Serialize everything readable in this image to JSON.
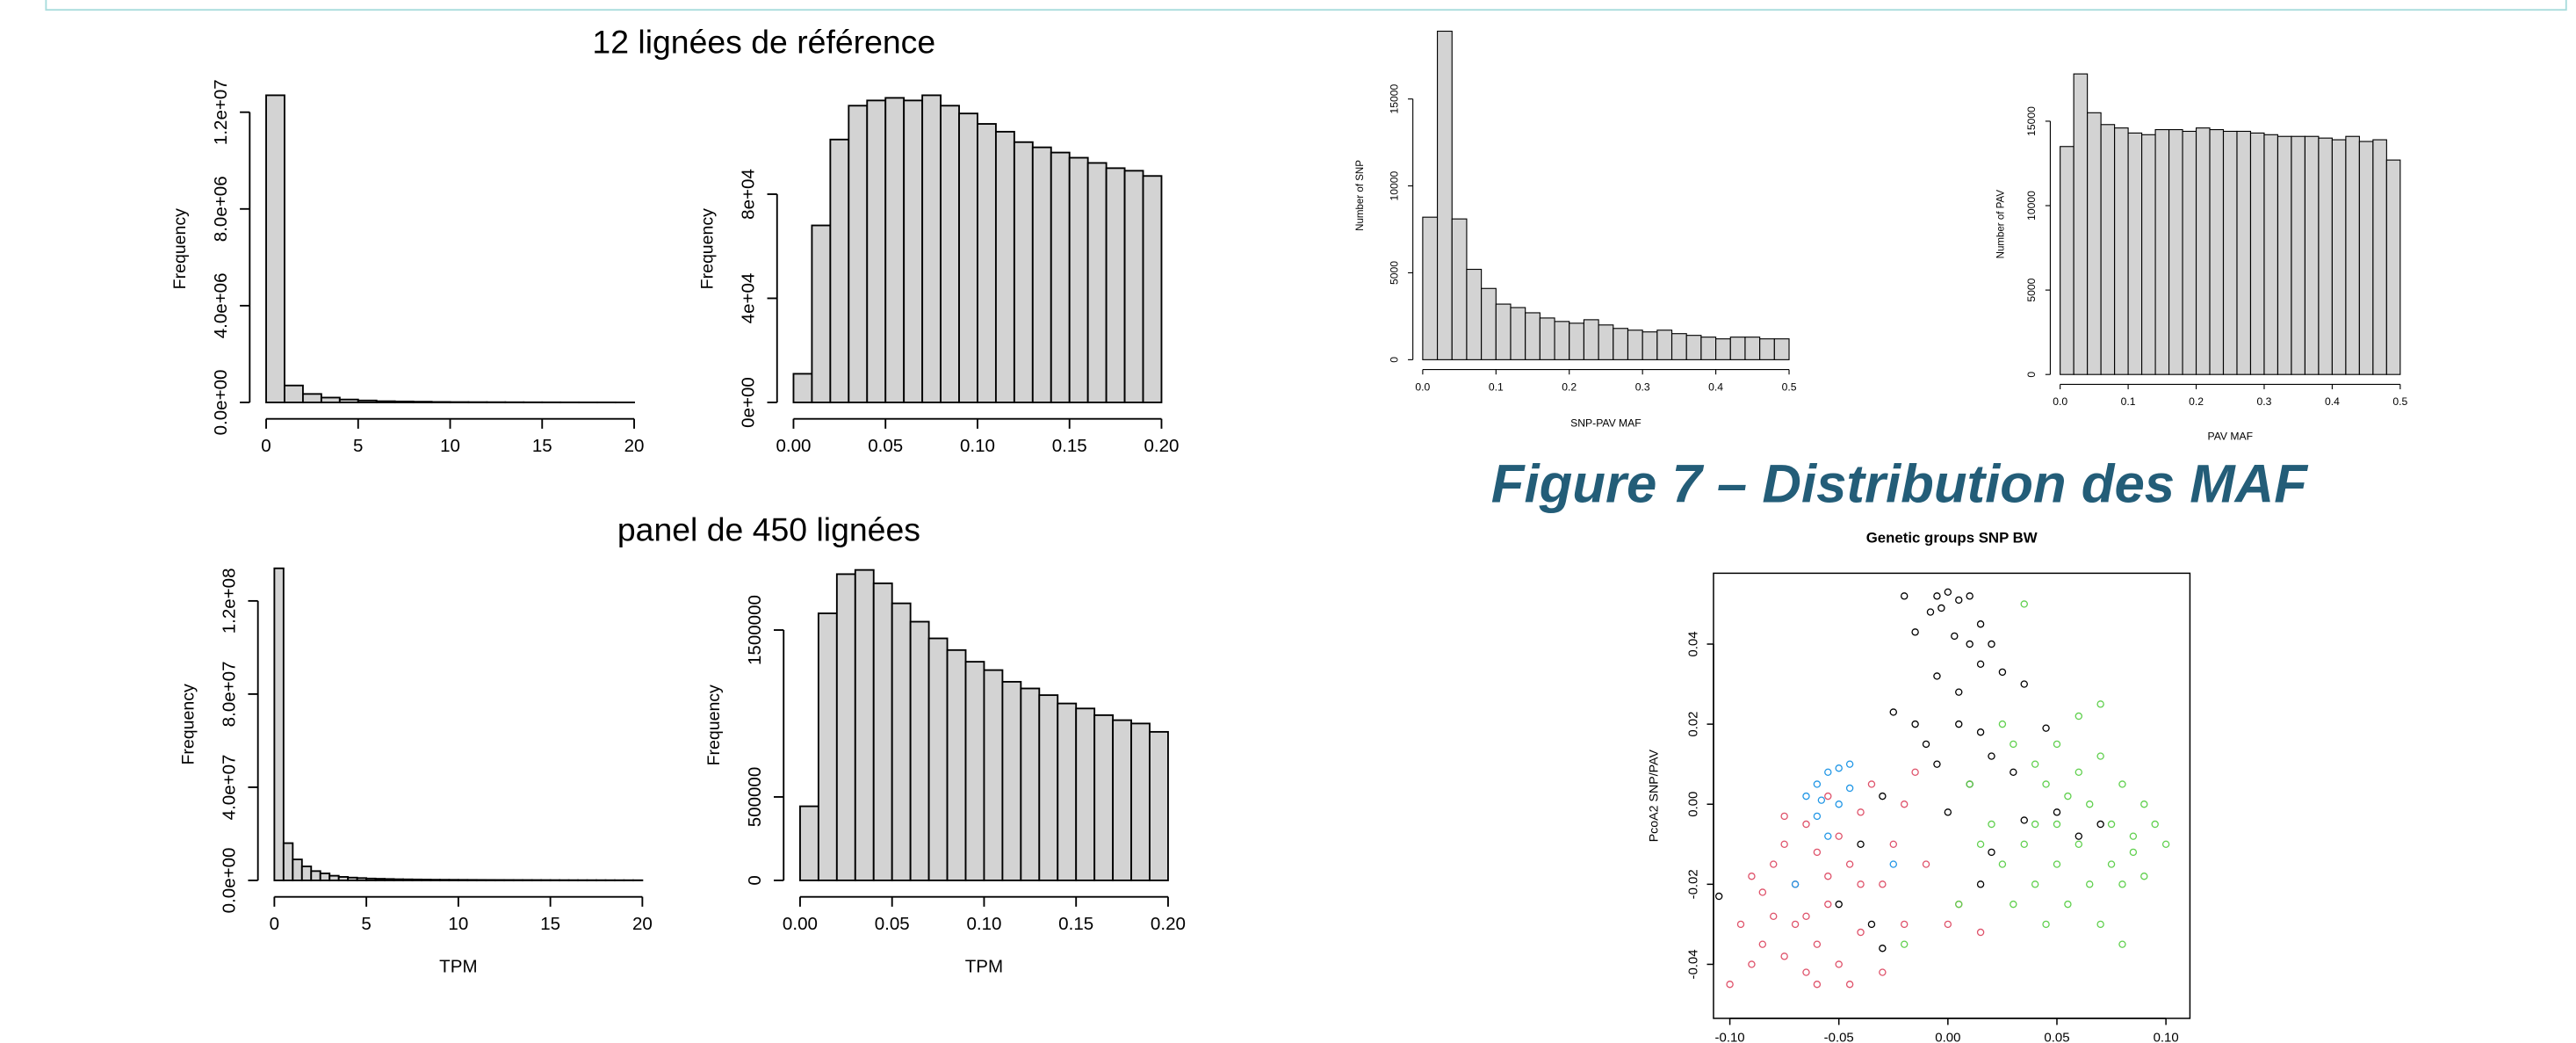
{
  "group_titles": [
    "12 lignées de référence",
    "panel de 450 lignées"
  ],
  "caption": "Figure 7 – Distribution des MAF",
  "chart_data": [
    {
      "type": "histogram",
      "ylabel": "Frequency",
      "color": "#d3d3d3",
      "bins": [
        0,
        1,
        2,
        3,
        4,
        5,
        6,
        7,
        8,
        9,
        10,
        11,
        12,
        13,
        14,
        15,
        16,
        17,
        18,
        19,
        20
      ],
      "values": [
        12700000,
        700000,
        350000,
        200000,
        120000,
        80000,
        50000,
        40000,
        30000,
        20000,
        15000,
        12000,
        10000,
        8000,
        6000,
        5000,
        4000,
        3000,
        3000,
        2000
      ],
      "xlim": [
        0,
        20
      ],
      "ylim": [
        0,
        12700000
      ],
      "xticks": [
        0,
        5,
        10,
        15,
        20
      ],
      "yticks": [
        {
          "value": 0,
          "label": "0.0e+00"
        },
        {
          "value": 4000000,
          "label": "4.0e+06"
        },
        {
          "value": 8000000,
          "label": "8.0e+06"
        },
        {
          "value": 12000000,
          "label": "1.2e+07"
        }
      ]
    },
    {
      "type": "histogram",
      "ylabel": "Frequency",
      "color": "#d3d3d3",
      "bins": [
        0,
        0.01,
        0.02,
        0.03,
        0.04,
        0.05,
        0.06,
        0.07,
        0.08,
        0.09,
        0.1,
        0.11,
        0.12,
        0.13,
        0.14,
        0.15,
        0.16,
        0.17,
        0.18,
        0.19,
        0.2
      ],
      "values": [
        11000,
        68000,
        101000,
        114000,
        116000,
        117000,
        116000,
        118000,
        114000,
        111000,
        107000,
        104000,
        100000,
        98000,
        96000,
        94000,
        92000,
        90000,
        89000,
        87000
      ],
      "xlim": [
        0,
        0.2
      ],
      "ylim": [
        0,
        118000
      ],
      "xticks": [
        {
          "value": 0,
          "label": "0.00"
        },
        {
          "value": 0.05,
          "label": "0.05"
        },
        {
          "value": 0.1,
          "label": "0.10"
        },
        {
          "value": 0.15,
          "label": "0.15"
        },
        {
          "value": 0.2,
          "label": "0.20"
        }
      ],
      "yticks": [
        {
          "value": 0,
          "label": "0e+00"
        },
        {
          "value": 40000,
          "label": "4e+04"
        },
        {
          "value": 80000,
          "label": "8e+04"
        }
      ]
    },
    {
      "type": "histogram",
      "ylabel": "Frequency",
      "xlabel": "TPM",
      "color": "#d3d3d3",
      "bins": [
        0,
        0.5,
        1,
        1.5,
        2,
        2.5,
        3,
        3.5,
        4,
        4.5,
        5,
        5.5,
        6,
        6.5,
        7,
        7.5,
        8,
        8.5,
        9,
        9.5,
        10,
        10.5,
        11,
        11.5,
        12,
        12.5,
        13,
        13.5,
        14,
        14.5,
        15,
        15.5,
        16,
        16.5,
        17,
        17.5,
        18,
        18.5,
        19,
        19.5,
        20
      ],
      "values": [
        134000000,
        16000000,
        9000000,
        6000000,
        4000000,
        3000000,
        2000000,
        1500000,
        1200000,
        1000000,
        800000,
        700000,
        600000,
        500000,
        450000,
        400000,
        350000,
        300000,
        280000,
        260000,
        240000,
        220000,
        200000,
        190000,
        180000,
        170000,
        160000,
        150000,
        140000,
        130000,
        120000,
        110000,
        100000,
        95000,
        90000,
        85000,
        80000,
        75000,
        70000,
        65000
      ],
      "xlim": [
        0,
        20
      ],
      "ylim": [
        0,
        134000000
      ],
      "xticks": [
        0,
        5,
        10,
        15,
        20
      ],
      "yticks": [
        {
          "value": 0,
          "label": "0.0e+00"
        },
        {
          "value": 40000000,
          "label": "4.0e+07"
        },
        {
          "value": 80000000,
          "label": "8.0e+07"
        },
        {
          "value": 120000000,
          "label": "1.2e+08"
        }
      ]
    },
    {
      "type": "histogram",
      "ylabel": "Frequency",
      "xlabel": "TPM",
      "color": "#d3d3d3",
      "bins": [
        0,
        0.01,
        0.02,
        0.03,
        0.04,
        0.05,
        0.06,
        0.07,
        0.08,
        0.09,
        0.1,
        0.11,
        0.12,
        0.13,
        0.14,
        0.15,
        0.16,
        0.17,
        0.18,
        0.19,
        0.2
      ],
      "values": [
        444000,
        1600000,
        1835000,
        1860000,
        1780000,
        1660000,
        1550000,
        1450000,
        1380000,
        1310000,
        1260000,
        1190000,
        1150000,
        1110000,
        1060000,
        1030000,
        990000,
        960000,
        940000,
        890000
      ],
      "xlim": [
        0,
        0.2
      ],
      "ylim": [
        0,
        1860000
      ],
      "xticks": [
        {
          "value": 0,
          "label": "0.00"
        },
        {
          "value": 0.05,
          "label": "0.05"
        },
        {
          "value": 0.1,
          "label": "0.10"
        },
        {
          "value": 0.15,
          "label": "0.15"
        },
        {
          "value": 0.2,
          "label": "0.20"
        }
      ],
      "yticks": [
        0,
        500000,
        1500000
      ]
    },
    {
      "type": "histogram",
      "ylabel": "Number of SNP",
      "xlabel": "SNP-PAV MAF",
      "color": "#d3d3d3",
      "bins": [
        0,
        0.02,
        0.04,
        0.06,
        0.08,
        0.1,
        0.12,
        0.14,
        0.16,
        0.18,
        0.2,
        0.22,
        0.24,
        0.26,
        0.28,
        0.3,
        0.32,
        0.34,
        0.36,
        0.38,
        0.4,
        0.42,
        0.44,
        0.46,
        0.48,
        0.5
      ],
      "values": [
        8200,
        18900,
        8100,
        5200,
        4100,
        3200,
        3000,
        2700,
        2400,
        2200,
        2100,
        2300,
        2000,
        1800,
        1700,
        1600,
        1700,
        1500,
        1400,
        1300,
        1200,
        1300,
        1300,
        1200,
        1200
      ],
      "xlim": [
        0,
        0.5
      ],
      "ylim": [
        0,
        18900
      ],
      "xticks": [
        {
          "value": 0,
          "label": "0.0"
        },
        {
          "value": 0.1,
          "label": "0.1"
        },
        {
          "value": 0.2,
          "label": "0.2"
        },
        {
          "value": 0.3,
          "label": "0.3"
        },
        {
          "value": 0.4,
          "label": "0.4"
        },
        {
          "value": 0.5,
          "label": "0.5"
        }
      ],
      "yticks": [
        0,
        5000,
        10000,
        15000
      ]
    },
    {
      "type": "histogram",
      "ylabel": "Number of PAV",
      "xlabel": "PAV MAF",
      "color": "#d3d3d3",
      "bins": [
        0,
        0.02,
        0.04,
        0.06,
        0.08,
        0.1,
        0.12,
        0.14,
        0.16,
        0.18,
        0.2,
        0.22,
        0.24,
        0.26,
        0.28,
        0.3,
        0.32,
        0.34,
        0.36,
        0.38,
        0.4,
        0.42,
        0.44,
        0.46,
        0.48,
        0.5
      ],
      "values": [
        13500,
        17800,
        15500,
        14800,
        14600,
        14300,
        14200,
        14500,
        14500,
        14400,
        14600,
        14500,
        14400,
        14400,
        14300,
        14200,
        14100,
        14100,
        14100,
        14000,
        13900,
        14100,
        13800,
        13900,
        12700
      ],
      "xlim": [
        0,
        0.5
      ],
      "ylim": [
        0,
        17800
      ],
      "xticks": [
        {
          "value": 0,
          "label": "0.0"
        },
        {
          "value": 0.1,
          "label": "0.1"
        },
        {
          "value": 0.2,
          "label": "0.2"
        },
        {
          "value": 0.3,
          "label": "0.3"
        },
        {
          "value": 0.4,
          "label": "0.4"
        },
        {
          "value": 0.5,
          "label": "0.5"
        }
      ],
      "yticks": [
        0,
        5000,
        10000,
        15000
      ]
    },
    {
      "type": "scatter",
      "title": "Genetic groups SNP BW",
      "ylabel": "PcoA2 SNP/PAV",
      "xlim": [
        -0.1075,
        0.111
      ],
      "ylim": [
        -0.0535,
        0.0577
      ],
      "xticks": [
        {
          "value": -0.1,
          "label": "-0.10"
        },
        {
          "value": -0.05,
          "label": "-0.05"
        },
        {
          "value": 0,
          "label": "0.00"
        },
        {
          "value": 0.05,
          "label": "0.05"
        },
        {
          "value": 0.1,
          "label": "0.10"
        }
      ],
      "yticks": [
        {
          "value": -0.04,
          "label": "-0.04"
        },
        {
          "value": -0.02,
          "label": "-0.02"
        },
        {
          "value": 0,
          "label": "0.00"
        },
        {
          "value": 0.02,
          "label": "0.02"
        },
        {
          "value": 0.04,
          "label": "0.04"
        }
      ],
      "series": [
        {
          "color": "#000000",
          "x": [
            -0.005,
            0,
            0.005,
            -0.003,
            0.01,
            -0.02,
            -0.008,
            0.015,
            0.003,
            0.01,
            -0.015,
            0.02,
            0.015,
            0.025,
            -0.005,
            0.005,
            0.035,
            -0.025,
            -0.015,
            0.005,
            0.015,
            -0.01,
            0.045,
            0.02,
            -0.005,
            0.03,
            0.01,
            -0.03,
            0,
            0.035,
            0.05,
            0.06,
            0.02,
            -0.04,
            -0.05,
            -0.035,
            -0.03,
            -0.105,
            0.07,
            0.015
          ],
          "y": [
            0.052,
            0.053,
            0.051,
            0.049,
            0.052,
            0.052,
            0.048,
            0.045,
            0.042,
            0.04,
            0.043,
            0.04,
            0.035,
            0.033,
            0.032,
            0.028,
            0.03,
            0.023,
            0.02,
            0.02,
            0.018,
            0.015,
            0.019,
            0.012,
            0.01,
            0.008,
            0.005,
            0.002,
            -0.002,
            -0.004,
            -0.002,
            -0.008,
            -0.012,
            -0.01,
            -0.025,
            -0.03,
            -0.036,
            -0.023,
            -0.005,
            -0.02
          ]
        },
        {
          "color": "#df536b",
          "x": [
            -0.09,
            -0.085,
            -0.08,
            -0.075,
            -0.07,
            -0.065,
            -0.06,
            -0.055,
            -0.05,
            -0.045,
            -0.04,
            -0.035,
            -0.03,
            -0.025,
            -0.02,
            -0.015,
            -0.01,
            0.005,
            0.015,
            -0.09,
            -0.085,
            -0.08,
            -0.075,
            -0.07,
            -0.065,
            -0.06,
            -0.055,
            -0.05,
            -0.045,
            -0.04,
            -0.095,
            -0.1,
            -0.075,
            -0.065,
            -0.03,
            -0.02,
            -0.055,
            -0.04,
            0,
            -0.06
          ],
          "y": [
            -0.018,
            -0.022,
            -0.015,
            -0.01,
            -0.02,
            -0.005,
            -0.012,
            -0.018,
            -0.008,
            -0.015,
            -0.002,
            0.005,
            -0.02,
            -0.01,
            0,
            0.008,
            -0.015,
            -0.025,
            -0.032,
            -0.04,
            -0.035,
            -0.028,
            -0.038,
            -0.03,
            -0.042,
            -0.035,
            -0.025,
            -0.04,
            -0.045,
            -0.032,
            -0.03,
            -0.045,
            -0.003,
            -0.028,
            -0.042,
            -0.03,
            0.002,
            -0.02,
            -0.03,
            -0.045
          ]
        },
        {
          "color": "#61d04f",
          "x": [
            0.03,
            0.035,
            0.04,
            0.045,
            0.05,
            0.055,
            0.06,
            0.065,
            0.07,
            0.075,
            0.08,
            0.085,
            0.09,
            0.095,
            0.1,
            0.02,
            0.025,
            0.03,
            0.035,
            0.04,
            0.045,
            0.05,
            0.055,
            0.06,
            0.065,
            0.07,
            0.075,
            0.08,
            0.085,
            0.09,
            0.01,
            0.015,
            0.025,
            0.04,
            0.06,
            0.07,
            0.05,
            0.08,
            0.005,
            -0.02
          ],
          "y": [
            0.015,
            0.05,
            0.01,
            0.005,
            0.015,
            0.002,
            0.008,
            0,
            0.012,
            -0.005,
            0.005,
            -0.008,
            0,
            -0.005,
            -0.01,
            -0.005,
            -0.015,
            -0.025,
            -0.01,
            -0.02,
            -0.03,
            -0.015,
            -0.025,
            -0.01,
            -0.02,
            -0.03,
            -0.015,
            -0.02,
            -0.012,
            -0.018,
            0.005,
            -0.01,
            0.02,
            -0.005,
            0.022,
            0.025,
            -0.005,
            -0.035,
            -0.025,
            -0.035
          ]
        },
        {
          "color": "#2297e6",
          "x": [
            -0.06,
            -0.055,
            -0.05,
            -0.045,
            -0.06,
            -0.055,
            -0.065,
            -0.045,
            -0.05,
            -0.07,
            -0.025,
            -0.058
          ],
          "y": [
            0.005,
            0.008,
            0,
            0.01,
            -0.003,
            -0.008,
            0.002,
            0.004,
            0.009,
            -0.02,
            -0.015,
            0.001
          ]
        }
      ]
    }
  ]
}
